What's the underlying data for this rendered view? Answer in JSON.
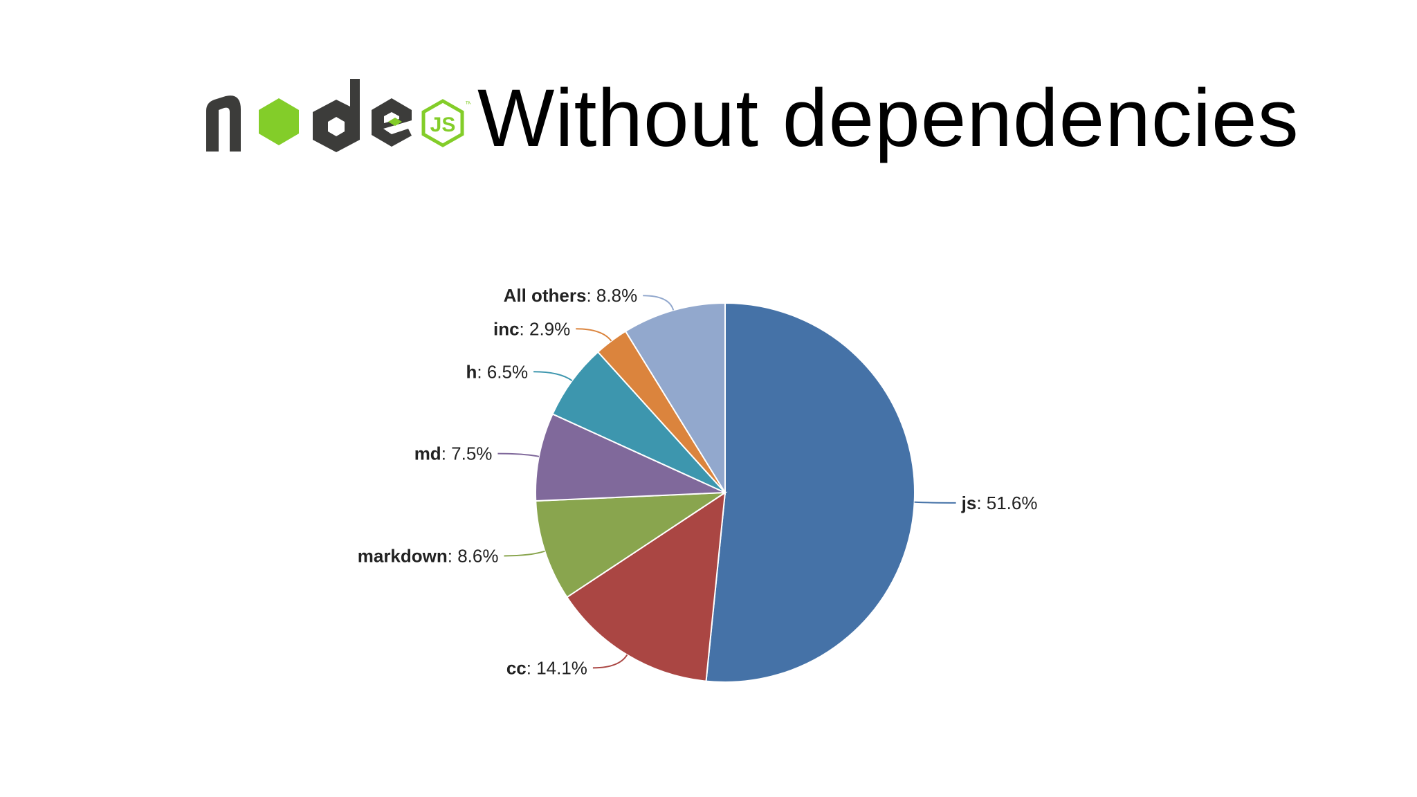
{
  "slide": {
    "title": "Without dependencies",
    "logo": {
      "text": "node",
      "badge": "JS",
      "trademark": "™",
      "colors": {
        "dark": "#3c3c3a",
        "green": "#83cd29"
      }
    }
  },
  "chart_data": {
    "type": "pie",
    "title": "",
    "legend": "none",
    "start_angle_deg": 0,
    "direction": "clockwise",
    "slices": [
      {
        "name": "js",
        "value": 51.6,
        "value_label": "51.6%",
        "color": "#4572a7"
      },
      {
        "name": "cc",
        "value": 14.1,
        "value_label": "14.1%",
        "color": "#aa4643"
      },
      {
        "name": "markdown",
        "value": 8.6,
        "value_label": "8.6%",
        "color": "#89a54e"
      },
      {
        "name": "md",
        "value": 7.5,
        "value_label": "7.5%",
        "color": "#80699b"
      },
      {
        "name": "h",
        "value": 6.5,
        "value_label": "6.5%",
        "color": "#3d96ae"
      },
      {
        "name": "inc",
        "value": 2.9,
        "value_label": "2.9%",
        "color": "#db843d"
      },
      {
        "name": "All others",
        "value": 8.8,
        "value_label": "8.8%",
        "color": "#92a8cd"
      }
    ]
  }
}
